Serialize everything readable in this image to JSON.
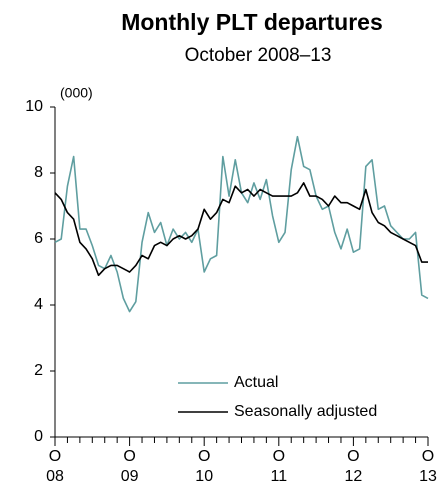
{
  "chart_data": {
    "type": "line",
    "title": "Monthly PLT departures",
    "subtitle": "October 2008–13",
    "y_unit_label": "(000)",
    "categories": [
      "O",
      null,
      null,
      null,
      null,
      null,
      null,
      null,
      null,
      null,
      null,
      null,
      "O",
      null,
      null,
      null,
      null,
      null,
      null,
      null,
      null,
      null,
      null,
      null,
      "O",
      null,
      null,
      null,
      null,
      null,
      null,
      null,
      null,
      null,
      null,
      null,
      "O",
      null,
      null,
      null,
      null,
      null,
      null,
      null,
      null,
      null,
      null,
      null,
      "O",
      null,
      null,
      null,
      null,
      null,
      null,
      null,
      null,
      null,
      null,
      null,
      "O"
    ],
    "year_labels": [
      "08",
      "09",
      "10",
      "11",
      "12",
      "13"
    ],
    "series": [
      {
        "name": "Actual",
        "color": "#5f9ea0",
        "values": [
          5.9,
          6.0,
          7.6,
          8.5,
          6.3,
          6.3,
          5.8,
          5.2,
          5.1,
          5.5,
          5.0,
          4.2,
          3.8,
          4.1,
          5.9,
          6.8,
          6.2,
          6.5,
          5.8,
          6.3,
          6.0,
          6.2,
          5.9,
          6.3,
          5.0,
          5.4,
          5.5,
          8.5,
          7.3,
          8.4,
          7.4,
          7.1,
          7.7,
          7.2,
          7.8,
          6.7,
          5.9,
          6.2,
          8.1,
          9.1,
          8.2,
          8.1,
          7.3,
          6.9,
          7.0,
          6.2,
          5.7,
          6.3,
          5.6,
          5.7,
          8.2,
          8.4,
          6.9,
          7.0,
          6.4,
          6.2,
          6.0,
          6.0,
          6.2,
          4.3,
          4.2
        ]
      },
      {
        "name": "Seasonally adjusted",
        "color": "#000000",
        "values": [
          7.4,
          7.2,
          6.8,
          6.6,
          5.9,
          5.7,
          5.4,
          4.9,
          5.1,
          5.2,
          5.2,
          5.1,
          5.0,
          5.2,
          5.5,
          5.4,
          5.8,
          5.9,
          5.8,
          6.0,
          6.1,
          6.0,
          6.1,
          6.3,
          6.9,
          6.6,
          6.8,
          7.2,
          7.1,
          7.6,
          7.4,
          7.5,
          7.3,
          7.5,
          7.4,
          7.3,
          7.3,
          7.3,
          7.3,
          7.4,
          7.7,
          7.3,
          7.3,
          7.2,
          7.0,
          7.3,
          7.1,
          7.1,
          7.0,
          6.9,
          7.5,
          6.8,
          6.5,
          6.4,
          6.2,
          6.1,
          6.0,
          5.9,
          5.8,
          5.3,
          5.3
        ]
      }
    ],
    "ylim": [
      0,
      10
    ],
    "yticks": [
      0,
      2,
      4,
      6,
      8,
      10
    ],
    "grid": false,
    "legend": "bottom"
  }
}
